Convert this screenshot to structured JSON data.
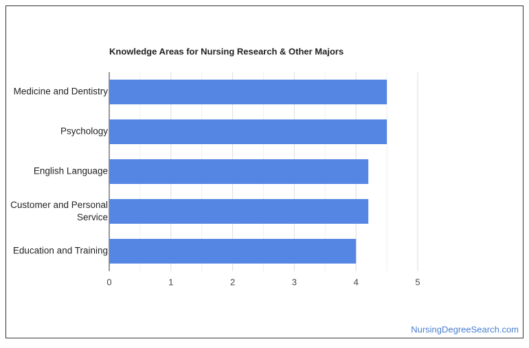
{
  "chart_data": {
    "type": "hbar",
    "title": "Knowledge Areas for Nursing Research & Other Majors",
    "categories": [
      "Medicine and Dentistry",
      "Psychology",
      "English Language",
      "Customer and Personal Service",
      "Education and Training"
    ],
    "values": [
      4.5,
      4.5,
      4.2,
      4.2,
      4.0
    ],
    "color": "#5586e4",
    "xlim": [
      0,
      5
    ],
    "xticks": [
      0,
      1,
      2,
      3,
      4,
      5
    ],
    "grid": true,
    "minor_grid": true
  },
  "footer": "NursingDegreeSearch.com"
}
